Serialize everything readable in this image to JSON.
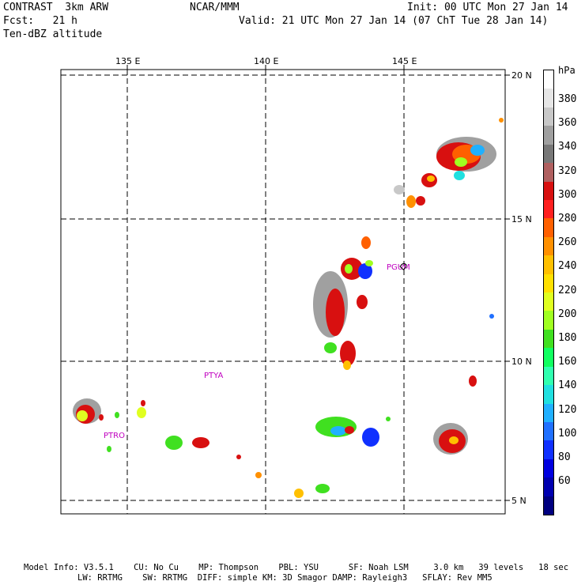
{
  "header": {
    "line1_left": "CONTRAST  3km ARW",
    "line1_mid": "NCAR/MMM",
    "line1_right": "Init: 00 UTC Mon 27 Jan 14",
    "line2_left": "Fcst:   21 h",
    "line2_right": "Valid: 21 UTC Mon 27 Jan 14 (07 ChT Tue 28 Jan 14)",
    "line3_left": "Ten-dBZ altitude"
  },
  "axes": {
    "lon_labels": [
      "135 E",
      "140 E",
      "145 E"
    ],
    "lat_labels": [
      "20 N",
      "15 N",
      "10 N",
      "5 N"
    ]
  },
  "stations": [
    "PGUM",
    "PTYA",
    "PTRO"
  ],
  "colorbar": {
    "unit": "hPa",
    "labels": [
      "380",
      "360",
      "340",
      "320",
      "300",
      "280",
      "260",
      "240",
      "220",
      "200",
      "180",
      "160",
      "140",
      "120",
      "100",
      "80",
      "60"
    ],
    "colors": [
      "#ffffff",
      "#e6e6e6",
      "#c8c8c8",
      "#a0a0a0",
      "#787878",
      "#b06060",
      "#d81010",
      "#ff2020",
      "#ff6000",
      "#ff9000",
      "#ffc000",
      "#ffe000",
      "#e0ff20",
      "#a0ff20",
      "#40e020",
      "#10ff60",
      "#30ffb0",
      "#20e0e0",
      "#20b0ff",
      "#2070ff",
      "#1030ff",
      "#0000e0",
      "#0000b0",
      "#000080"
    ]
  },
  "footer": {
    "line1": "Model Info: V3.5.1    CU: No Cu    MP: Thompson    PBL: YSU      SF: Noah LSM     3.0 km   39 levels   18 sec",
    "line2": "LW: RRTMG    SW: RRTMG  DIFF: simple KM: 3D Smagor DAMP: Rayleigh3   SFLAY: Rev MM5"
  }
}
